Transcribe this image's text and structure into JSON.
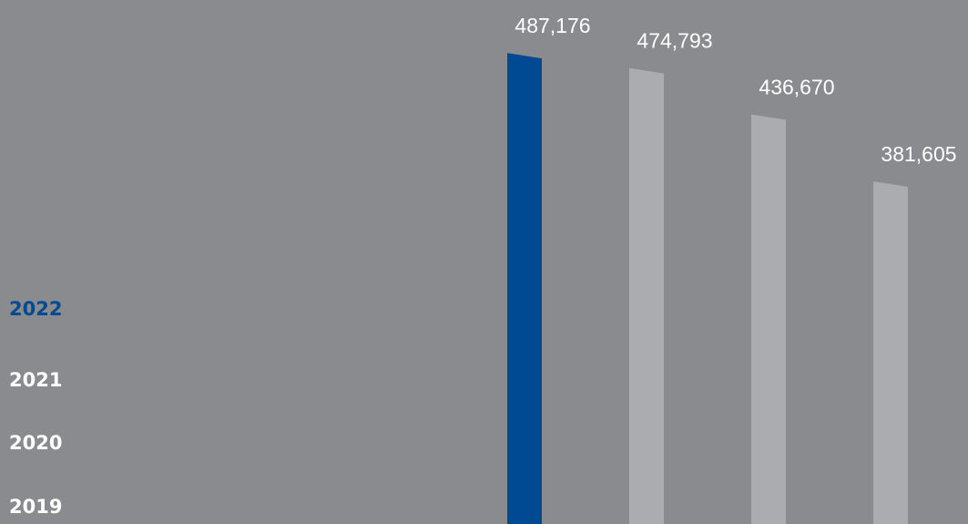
{
  "chart_data": {
    "type": "bar",
    "categories": [
      "2022",
      "2021",
      "2020",
      "2019"
    ],
    "values": [
      487176,
      474793,
      436670,
      381605
    ],
    "value_labels": [
      "487,176",
      "474,793",
      "436,670",
      "381,605"
    ],
    "colors": [
      "#004a93",
      "#abacb0",
      "#abacb0",
      "#abacb0"
    ],
    "category_colors": [
      "#004a93",
      "#ffffff",
      "#ffffff",
      "#ffffff"
    ],
    "ylim": [
      100000,
      500000
    ]
  }
}
